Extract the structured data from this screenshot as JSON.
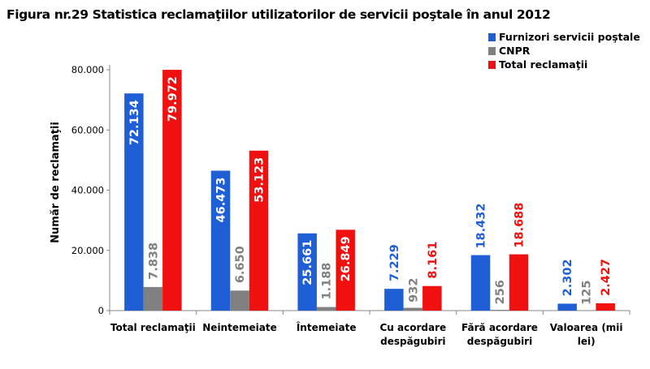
{
  "chart_data": {
    "type": "bar",
    "title": "Figura nr.29 Statistica reclamaţiilor utilizatorilor de servicii poştale în anul 2012",
    "xlabel": "",
    "ylabel": "Număr de reclamaţii",
    "ylim": [
      0,
      80000
    ],
    "yticks": [
      "0",
      "20.000",
      "40.000",
      "60.000",
      "80.000"
    ],
    "grid": false,
    "legend_position": "top-right",
    "categories": [
      "Total reclamaţii",
      "Neintemeiate",
      "Întemeiate",
      "Cu acordare despăgubiri",
      "Fără acordare despăgubiri",
      "Valoarea (mii lei)"
    ],
    "series": [
      {
        "name": "Furnizori servicii poştale",
        "color": "#1f5fd6",
        "values": [
          72134,
          46473,
          25661,
          7229,
          18432,
          2302
        ],
        "labels": [
          "72.134",
          "46.473",
          "25.661",
          "7.229",
          "18.432",
          "2.302"
        ]
      },
      {
        "name": "CNPR",
        "color": "#808080",
        "values": [
          7838,
          6650,
          1188,
          932,
          256,
          125
        ],
        "labels": [
          "7.838",
          "6.650",
          "1.188",
          "932",
          "256",
          "125"
        ]
      },
      {
        "name": "Total reclamaţii",
        "color": "#f01010",
        "values": [
          79972,
          53123,
          26849,
          8161,
          18688,
          2427
        ],
        "labels": [
          "79.972",
          "53.123",
          "26.849",
          "8.161",
          "18.688",
          "2.427"
        ]
      }
    ]
  }
}
